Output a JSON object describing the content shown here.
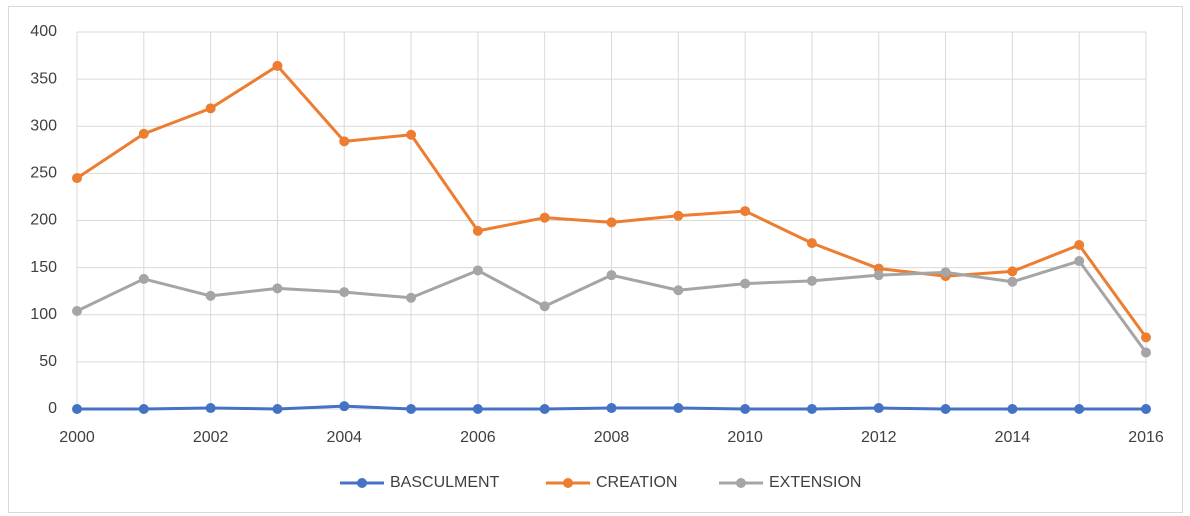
{
  "chart_data": {
    "type": "line",
    "x": [
      2000,
      2001,
      2002,
      2003,
      2004,
      2005,
      2006,
      2007,
      2008,
      2009,
      2010,
      2011,
      2012,
      2013,
      2014,
      2015,
      2016
    ],
    "series": [
      {
        "name": "BASCULMENT",
        "color": "#4472c4",
        "values": [
          0,
          0,
          1,
          0,
          3,
          0,
          0,
          0,
          1,
          1,
          0,
          0,
          1,
          0,
          0,
          0,
          0
        ]
      },
      {
        "name": "CREATION",
        "color": "#ed7d31",
        "values": [
          245,
          292,
          319,
          364,
          284,
          291,
          189,
          203,
          198,
          205,
          210,
          176,
          149,
          141,
          146,
          174,
          76
        ]
      },
      {
        "name": "EXTENSION",
        "color": "#a5a5a5",
        "values": [
          104,
          138,
          120,
          128,
          124,
          118,
          147,
          109,
          142,
          126,
          133,
          136,
          142,
          145,
          135,
          157,
          60
        ]
      }
    ],
    "xlim": [
      2000,
      2016
    ],
    "xticks": [
      2000,
      2002,
      2004,
      2006,
      2008,
      2010,
      2012,
      2014,
      2016
    ],
    "ylim": [
      0,
      400
    ],
    "yticks": [
      0,
      50,
      100,
      150,
      200,
      250,
      300,
      350,
      400
    ],
    "grid": true,
    "legend": "bottom"
  }
}
